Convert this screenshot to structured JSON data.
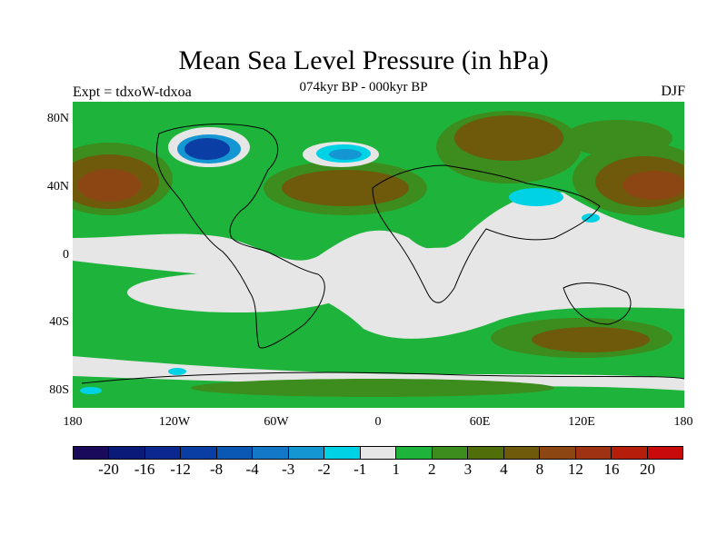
{
  "title": "Mean Sea Level Pressure (in hPa)",
  "subtitle": "074kyr BP - 000kyr BP",
  "left_label": "Expt = tdxoW-tdxoa",
  "right_label": "DJF",
  "y_ticks": [
    "80N",
    "40N",
    "0",
    "40S",
    "80S"
  ],
  "x_ticks": [
    "180",
    "120W",
    "60W",
    "0",
    "60E",
    "120E",
    "180"
  ],
  "colorbar": {
    "colors": [
      "#1a0a5c",
      "#0a1a78",
      "#0a2890",
      "#0a3ea4",
      "#0a58b4",
      "#1478c8",
      "#1496d2",
      "#00d2e6",
      "#e6e6e6",
      "#1eb43c",
      "#3c8c1e",
      "#506e0a",
      "#6e5a0a",
      "#8c4614",
      "#a03214",
      "#b41e0a",
      "#c80a0a"
    ],
    "labels": [
      "-20",
      "-16",
      "-12",
      "-8",
      "-4",
      "-3",
      "-2",
      "-1",
      "1",
      "2",
      "3",
      "4",
      "8",
      "12",
      "16",
      "20"
    ]
  },
  "map_colors": {
    "neutral": "#e6e6e6",
    "green": "#1eb43c",
    "darkgreen": "#3c8c1e",
    "olive": "#506e0a",
    "brown": "#6e5a0a",
    "redbrown": "#8c4614",
    "darkred": "#a03214",
    "cyan": "#00d2e6",
    "lightblue": "#1496d2",
    "blue": "#1478c8",
    "darkblue": "#0a3ea4"
  }
}
